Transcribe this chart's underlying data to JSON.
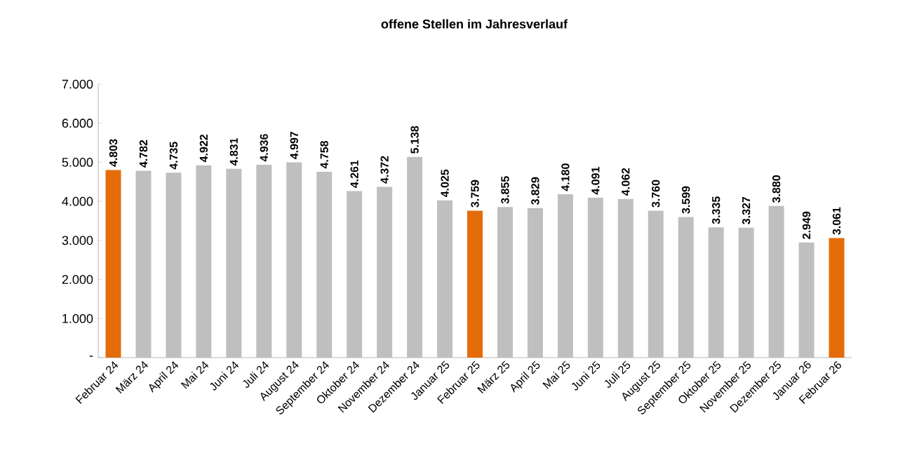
{
  "chart_data": {
    "type": "bar",
    "title": "offene Stellen im Jahresverlauf",
    "categories": [
      "Februar 24",
      "März 24",
      "April 24",
      "Mai 24",
      "Juni 24",
      "Juli 24",
      "August 24",
      "September 24",
      "Oktober 24",
      "November 24",
      "Dezember 24",
      "Januar 25",
      "Februar 25",
      "März 25",
      "April 25",
      "Mai 25",
      "Juni 25",
      "Juli 25",
      "August 25",
      "September 25",
      "Oktober 25",
      "November 25",
      "Dezember 25",
      "Januar 26",
      "Februar 26"
    ],
    "values": [
      4803,
      4782,
      4735,
      4922,
      4831,
      4936,
      4997,
      4758,
      4261,
      4372,
      5138,
      4025,
      3759,
      3855,
      3829,
      4180,
      4091,
      4062,
      3760,
      3599,
      3335,
      3327,
      3880,
      2949,
      3061
    ],
    "value_labels": [
      "4.803",
      "4.782",
      "4.735",
      "4.922",
      "4.831",
      "4.936",
      "4.997",
      "4.758",
      "4.261",
      "4.372",
      "5.138",
      "4.025",
      "3.759",
      "3.855",
      "3.829",
      "4.180",
      "4.091",
      "4.062",
      "3.760",
      "3.599",
      "3.335",
      "3.327",
      "3.880",
      "2.949",
      "3.061"
    ],
    "colors": [
      "#e46c0a",
      "#bfbfbf",
      "#bfbfbf",
      "#bfbfbf",
      "#bfbfbf",
      "#bfbfbf",
      "#bfbfbf",
      "#bfbfbf",
      "#bfbfbf",
      "#bfbfbf",
      "#bfbfbf",
      "#bfbfbf",
      "#e46c0a",
      "#bfbfbf",
      "#bfbfbf",
      "#bfbfbf",
      "#bfbfbf",
      "#bfbfbf",
      "#bfbfbf",
      "#bfbfbf",
      "#bfbfbf",
      "#bfbfbf",
      "#bfbfbf",
      "#bfbfbf",
      "#e46c0a"
    ],
    "ylim": [
      0,
      7000
    ],
    "yticks": [
      {
        "value": 0,
        "label": "-"
      },
      {
        "value": 1000,
        "label": "1.000"
      },
      {
        "value": 2000,
        "label": "2.000"
      },
      {
        "value": 3000,
        "label": "3.000"
      },
      {
        "value": 4000,
        "label": "4.000"
      },
      {
        "value": 5000,
        "label": "5.000"
      },
      {
        "value": 6000,
        "label": "6.000"
      },
      {
        "value": 7000,
        "label": "7.000"
      }
    ]
  }
}
